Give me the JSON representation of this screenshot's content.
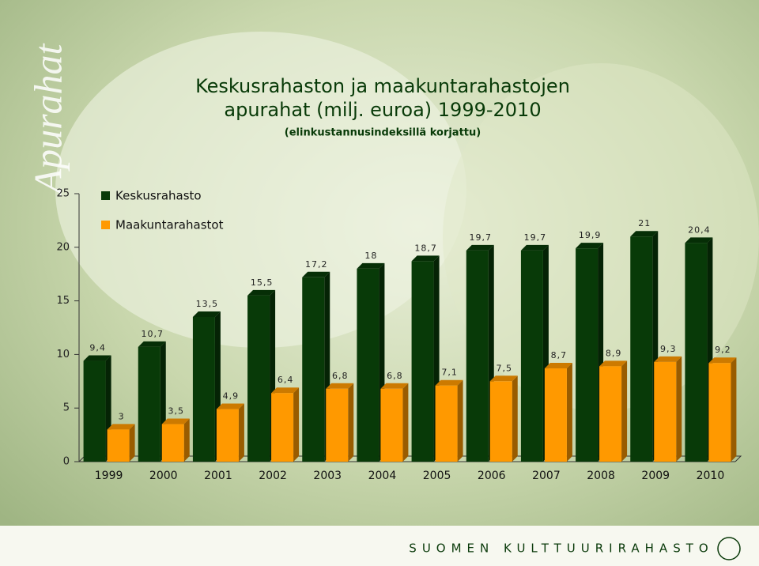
{
  "side_label": "Apurahat",
  "footer": "SUOMEN KULTTUURIRAHASTO",
  "chart_data": {
    "type": "bar",
    "title": [
      "Keskusrahaston ja maakuntarahastojen",
      "apurahat (milj. euroa) 1999-2010"
    ],
    "subtitle": "(elinkustannusindeksillä korjattu)",
    "categories": [
      "1999",
      "2000",
      "2001",
      "2002",
      "2003",
      "2004",
      "2005",
      "2006",
      "2007",
      "2008",
      "2009",
      "2010"
    ],
    "series": [
      {
        "name": "Keskusrahasto",
        "color": "#083a08",
        "values": [
          9.4,
          10.7,
          13.5,
          15.5,
          17.2,
          18,
          18.7,
          19.7,
          19.7,
          19.9,
          21,
          20.4
        ],
        "value_labels": [
          "9,4",
          "10,7",
          "13,5",
          "15,5",
          "17,2",
          "18",
          "18,7",
          "19,7",
          "19,7",
          "19,9",
          "21",
          "20,4"
        ]
      },
      {
        "name": "Maakuntarahastot",
        "color": "#ff9900",
        "values": [
          3,
          3.5,
          4.9,
          6.4,
          6.8,
          6.8,
          7.1,
          7.5,
          8.7,
          8.9,
          9.3,
          9.2
        ],
        "value_labels": [
          "3",
          "3,5",
          "4,9",
          "6,4",
          "6,8",
          "6,8",
          "7,1",
          "7,5",
          "8,7",
          "8,9",
          "9,3",
          "9,2"
        ]
      }
    ],
    "ylim": [
      0,
      25
    ],
    "yticks": [
      0,
      5,
      10,
      15,
      20,
      25
    ],
    "legend": "top-left"
  }
}
